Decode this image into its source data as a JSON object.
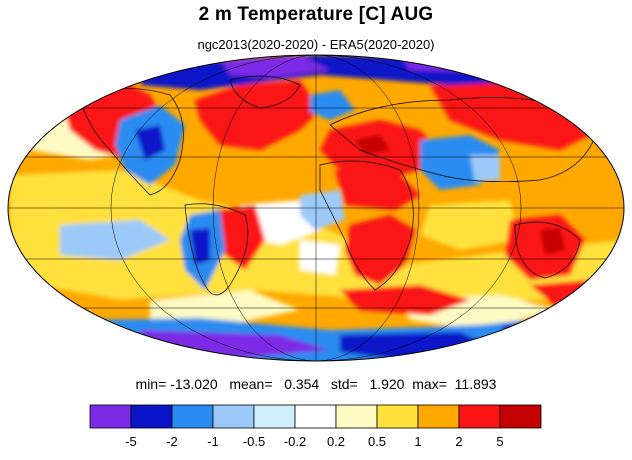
{
  "title": "2 m Temperature [C] AUG",
  "subtitle": "ngc2013(2020-2020) - ERA5(2020-2020)",
  "stats": {
    "min_label": "min=",
    "min": "-13.020",
    "mean_label": "mean=",
    "mean": "0.354",
    "std_label": "std=",
    "std": "1.920",
    "max_label": "max=",
    "max": "11.893"
  },
  "colorbar": {
    "levels": [
      "-5",
      "-2",
      "-1",
      "-0.5",
      "-0.2",
      "0.2",
      "0.5",
      "1",
      "2",
      "5"
    ],
    "colors": [
      "#7b2be6",
      "#0a14c8",
      "#2a8cf0",
      "#9ccaf8",
      "#d2f0fc",
      "#ffffff",
      "#fdfac4",
      "#ffe13c",
      "#ffa800",
      "#fa1414",
      "#c40000"
    ]
  },
  "map": {
    "projection": "mollweide",
    "colors_used": {
      "ocean_warm": "#ffa800",
      "very_warm": "#fa1414",
      "warm_light": "#ffe13c",
      "cool": "#2a8cf0",
      "cold": "#0a14c8",
      "very_cold": "#7b2be6",
      "light_cool": "#9ccaf8"
    }
  }
}
